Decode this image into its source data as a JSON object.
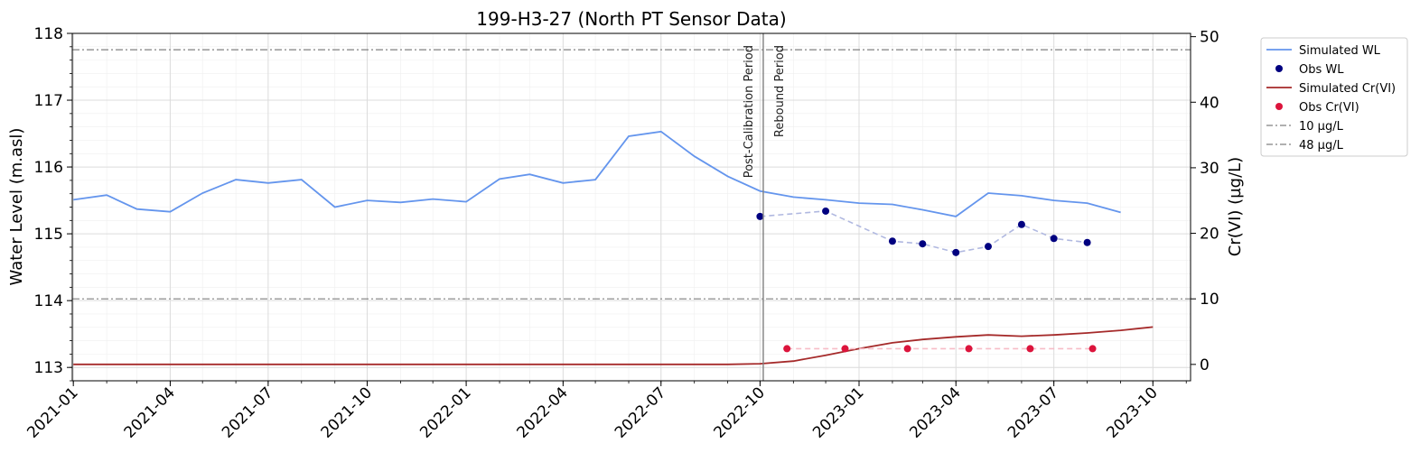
{
  "chart_data": {
    "type": "line",
    "title": "199-H3-27 (North PT Sensor Data)",
    "xlabel": "",
    "ylabel": "Water Level (m.asl)",
    "y2label": "Cr(VI) (µg/L)",
    "x_type": "date",
    "xlim": [
      "2020-12-31",
      "2023-11-05"
    ],
    "ylim": [
      112.8,
      118.0
    ],
    "y2lim": [
      -2.5,
      50.5
    ],
    "x_ticks": [
      "2021-01",
      "2021-04",
      "2021-07",
      "2021-10",
      "2022-01",
      "2022-04",
      "2022-07",
      "2022-10",
      "2023-01",
      "2023-04",
      "2023-07",
      "2023-10"
    ],
    "y_ticks": [
      "113",
      "114",
      "115",
      "116",
      "117",
      "118"
    ],
    "y2_ticks": [
      "0",
      "10",
      "20",
      "30",
      "40",
      "50"
    ],
    "grid": true,
    "legend_position": "outside-top-right",
    "series": [
      {
        "name": "Simulated WL",
        "kind": "line",
        "axis": "left",
        "color": "#6495ED",
        "x": [
          "2021-01-01",
          "2021-02-01",
          "2021-03-01",
          "2021-04-01",
          "2021-05-01",
          "2021-06-01",
          "2021-07-01",
          "2021-08-01",
          "2021-09-01",
          "2021-10-01",
          "2021-11-01",
          "2021-12-01",
          "2022-01-01",
          "2022-02-01",
          "2022-03-01",
          "2022-04-01",
          "2022-05-01",
          "2022-06-01",
          "2022-07-01",
          "2022-08-01",
          "2022-09-01",
          "2022-10-01",
          "2022-11-01",
          "2022-12-01",
          "2023-01-01",
          "2023-02-01",
          "2023-03-01",
          "2023-04-01",
          "2023-05-01",
          "2023-06-01",
          "2023-07-01",
          "2023-08-01",
          "2023-09-01"
        ],
        "y": [
          115.51,
          115.58,
          115.37,
          115.33,
          115.61,
          115.81,
          115.76,
          115.81,
          115.4,
          115.5,
          115.47,
          115.52,
          115.48,
          115.82,
          115.89,
          115.76,
          115.81,
          116.46,
          116.53,
          116.16,
          115.86,
          115.64,
          115.55,
          115.51,
          115.46,
          115.44,
          115.36,
          115.26,
          115.61,
          115.57,
          115.5,
          115.46,
          115.32
        ]
      },
      {
        "name": "Obs WL",
        "kind": "scatter",
        "axis": "left",
        "color": "#000080",
        "connector_color": "#B0B8E0",
        "x": [
          "2022-10-01",
          "2022-12-01",
          "2023-02-01",
          "2023-03-01",
          "2023-04-01",
          "2023-05-01",
          "2023-06-01",
          "2023-07-01",
          "2023-08-01"
        ],
        "y": [
          115.26,
          115.34,
          114.89,
          114.85,
          114.72,
          114.81,
          115.14,
          114.93,
          114.87
        ]
      },
      {
        "name": "Simulated Cr(VI)",
        "kind": "line",
        "axis": "right",
        "color": "#A52A2A",
        "x": [
          "2021-01-01",
          "2022-09-01",
          "2022-10-01",
          "2022-11-01",
          "2022-12-01",
          "2023-01-01",
          "2023-02-01",
          "2023-03-01",
          "2023-04-01",
          "2023-05-01",
          "2023-06-01",
          "2023-07-01",
          "2023-08-01",
          "2023-09-01",
          "2023-10-01"
        ],
        "y": [
          0.0,
          0.0,
          0.1,
          0.5,
          1.4,
          2.4,
          3.3,
          3.8,
          4.2,
          4.5,
          4.3,
          4.5,
          4.8,
          5.2,
          5.7
        ]
      },
      {
        "name": "Obs Cr(VI)",
        "kind": "scatter",
        "axis": "right",
        "color": "#DC143C",
        "connector_color": "#F7BCC7",
        "x": [
          "2022-10-26",
          "2022-12-19",
          "2023-02-15",
          "2023-04-13",
          "2023-06-09",
          "2023-08-06"
        ],
        "y": [
          2.4,
          2.4,
          2.4,
          2.4,
          2.4,
          2.4
        ]
      },
      {
        "name": "10 µg/L",
        "kind": "hline",
        "axis": "right",
        "color": "#808080",
        "value": 10
      },
      {
        "name": "48 µg/L",
        "kind": "hline",
        "axis": "right",
        "color": "#808080",
        "value": 48
      }
    ],
    "vline": {
      "x": "2022-10-04",
      "color": "#808080",
      "left_label": "Post-Calibration Period",
      "right_label": "Rebound Period"
    }
  }
}
